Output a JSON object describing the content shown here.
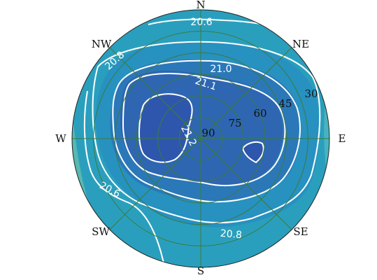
{
  "chart_data": {
    "type": "polar-contour",
    "title": "",
    "colormap": {
      "low": "#c9e48e",
      "mid": "#2a9fbd",
      "high": "#2f56ad",
      "contour_line_color": "#ffffff",
      "grid_color": "#3b7b3b"
    },
    "directions": [
      "N",
      "NE",
      "E",
      "SE",
      "S",
      "SW",
      "W",
      "NW"
    ],
    "elevation_rings": [
      "90",
      "75",
      "60",
      "45",
      "30"
    ],
    "elevation_range": [
      0,
      90
    ],
    "contours": [
      {
        "level": 20.6,
        "label": "20.6"
      },
      {
        "level": 20.6,
        "label": "20.6"
      },
      {
        "level": 20.8,
        "label": "20.8"
      },
      {
        "level": 20.8,
        "label": "20.8"
      },
      {
        "level": 21.0,
        "label": "21.0"
      },
      {
        "level": 21.1,
        "label": "21.1"
      },
      {
        "level": 21.2,
        "label": "21.2"
      }
    ],
    "field": {
      "peak_value": 21.25,
      "peak_azimuth_deg": 295,
      "peak_elevation_deg": 72,
      "secondary_peak_azimuth_deg": 118,
      "secondary_peak_elevation_deg": 58,
      "min_value": 20.3,
      "min_azimuth_deg": 230,
      "min_elevation_deg": 0
    }
  }
}
